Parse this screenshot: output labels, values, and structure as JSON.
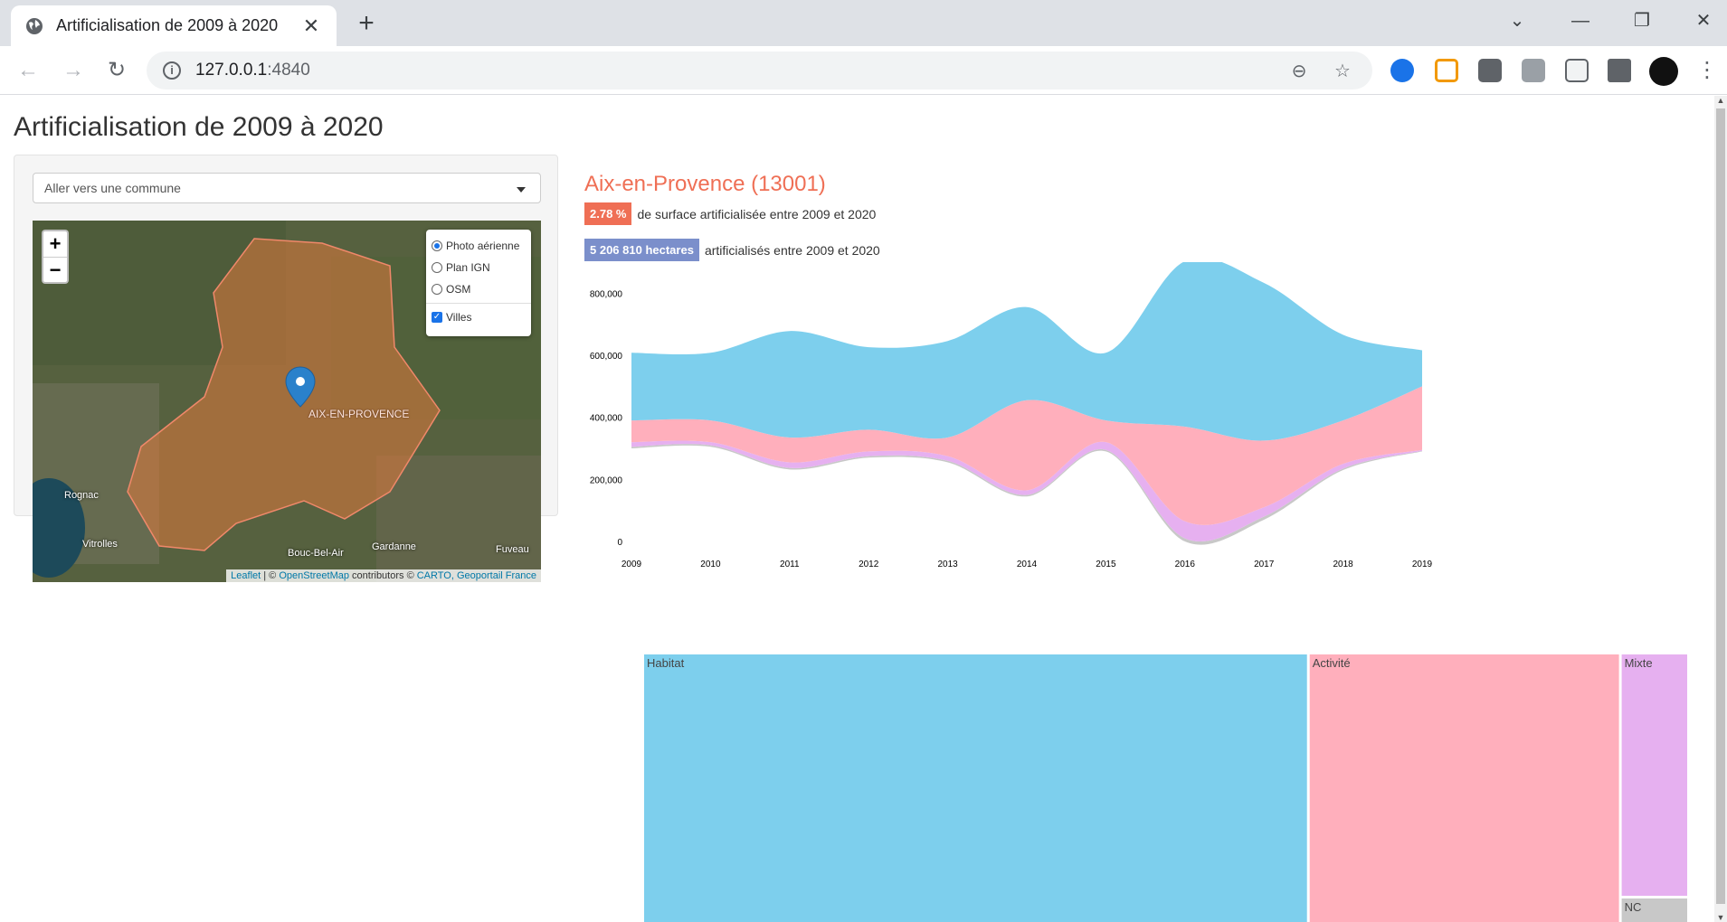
{
  "browser": {
    "tab_title": "Artificialisation de 2009 à 2020",
    "url_host": "127.0.0.1",
    "url_port": ":4840"
  },
  "page": {
    "title": "Artificialisation de 2009 à 2020",
    "commune_select": {
      "placeholder": "Aller vers une commune"
    },
    "map": {
      "zoom_in": "+",
      "zoom_out": "−",
      "layers": {
        "base": [
          {
            "label": "Photo aérienne",
            "selected": true
          },
          {
            "label": "Plan IGN",
            "selected": false
          },
          {
            "label": "OSM",
            "selected": false
          }
        ],
        "overlay": {
          "label": "Villes",
          "checked": true
        }
      },
      "places": [
        "AIX-EN-PROVENCE",
        "Rognac",
        "Vitrolles",
        "Bouc-Bel-Air",
        "Gardanne",
        "Fuveau"
      ],
      "attribution": {
        "leaflet": "Leaflet",
        "sep1": " | © ",
        "osm": "OpenStreetMap",
        "mid": " contributors © ",
        "carto": "CARTO, Geoportail France"
      }
    },
    "city": {
      "name": "Aix-en-Provence (13001)",
      "pct_value": "2.78 %",
      "pct_text": "de surface artificialisée entre 2009 et 2020",
      "ha_value": "5 206 810 hectares",
      "ha_text": "artificialisés entre 2009 et 2020"
    }
  },
  "colors": {
    "habitat": "#7dcfed",
    "activite": "#ffafbc",
    "mixte": "#e6b0f0",
    "nc": "#c8c8c8",
    "accent": "#ef6f55",
    "badge_blue": "#7b8fcb"
  },
  "chart_data": [
    {
      "type": "area",
      "stacked": true,
      "layout": "streamgraph",
      "title": "",
      "xlabel": "",
      "ylabel": "",
      "x": [
        2009,
        2010,
        2011,
        2012,
        2013,
        2014,
        2015,
        2016,
        2017,
        2018,
        2019
      ],
      "y_ticks": [
        0,
        200000,
        400000,
        600000,
        800000
      ],
      "y_tick_labels": [
        "0",
        "200,000",
        "400,000",
        "600,000",
        "800,000"
      ],
      "ylim": [
        0,
        900000
      ],
      "series": [
        {
          "key": "nc",
          "lower": [
            300000,
            305000,
            232000,
            270000,
            255000,
            145000,
            290000,
            0,
            70000,
            230000,
            290000
          ],
          "upper": [
            305000,
            310000,
            237000,
            275000,
            260000,
            150000,
            295000,
            10000,
            80000,
            235000,
            292000
          ]
        },
        {
          "key": "mixte",
          "lower": [
            305000,
            310000,
            237000,
            275000,
            260000,
            150000,
            295000,
            10000,
            80000,
            235000,
            292000
          ],
          "upper": [
            320000,
            320000,
            255000,
            290000,
            275000,
            165000,
            320000,
            65000,
            110000,
            250000,
            295000
          ]
        },
        {
          "key": "activite",
          "lower": [
            320000,
            320000,
            255000,
            290000,
            275000,
            165000,
            320000,
            65000,
            110000,
            250000,
            295000
          ],
          "upper": [
            390000,
            390000,
            335000,
            360000,
            335000,
            455000,
            390000,
            370000,
            325000,
            390000,
            500000
          ]
        },
        {
          "key": "habitat",
          "lower": [
            390000,
            390000,
            335000,
            360000,
            335000,
            455000,
            390000,
            370000,
            325000,
            390000,
            500000
          ],
          "upper": [
            608000,
            608000,
            678000,
            626000,
            646000,
            755000,
            608000,
            903000,
            833000,
            666000,
            616000
          ]
        }
      ]
    },
    {
      "type": "treemap",
      "categories": [
        "Habitat",
        "Activité",
        "Mixte",
        "NC"
      ],
      "values": [
        640,
        300,
        55,
        8
      ]
    }
  ]
}
